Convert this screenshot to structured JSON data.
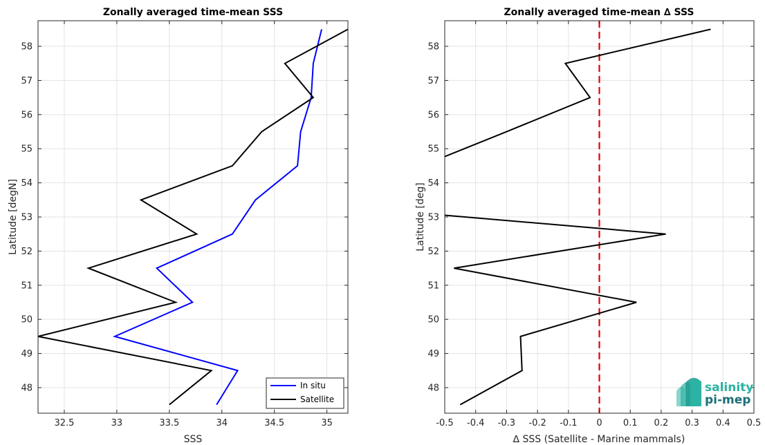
{
  "chart_data": [
    {
      "type": "line",
      "title": "Zonally averaged time-mean SSS",
      "xlabel": "SSS",
      "ylabel": "Latitude [degN]",
      "xlim": [
        32.25,
        35.2
      ],
      "ylim": [
        47.25,
        58.75
      ],
      "xticks": [
        "32.5",
        "33",
        "33.5",
        "34",
        "34.5",
        "35"
      ],
      "xtick_values": [
        32.5,
        33,
        33.5,
        34,
        34.5,
        35
      ],
      "yticks": [
        "48",
        "49",
        "50",
        "51",
        "52",
        "53",
        "54",
        "55",
        "56",
        "57",
        "58"
      ],
      "ytick_values": [
        48,
        49,
        50,
        51,
        52,
        53,
        54,
        55,
        56,
        57,
        58
      ],
      "grid": true,
      "legend_position": "bottom-right",
      "series": [
        {
          "name": "In situ",
          "color": "#0000ff",
          "x": [
            33.95,
            34.15,
            32.98,
            33.72,
            33.38,
            34.1,
            34.32,
            34.72,
            34.75,
            34.85,
            34.87,
            34.95
          ],
          "y": [
            47.5,
            48.5,
            49.5,
            50.5,
            51.5,
            52.5,
            53.5,
            54.5,
            55.5,
            56.5,
            57.5,
            58.5
          ]
        },
        {
          "name": "Satellite",
          "color": "#000000",
          "x": [
            33.5,
            33.9,
            32.25,
            33.56,
            32.73,
            33.76,
            33.23,
            34.1,
            34.38,
            34.87,
            34.6,
            35.2
          ],
          "y": [
            47.5,
            48.5,
            49.5,
            50.5,
            51.5,
            52.5,
            53.5,
            54.5,
            55.5,
            56.5,
            57.5,
            58.5
          ]
        }
      ]
    },
    {
      "type": "line",
      "title": "Zonally averaged time-mean ∆ SSS",
      "xlabel": "∆ SSS (Satellite - Marine mammals)",
      "ylabel": "Latitude [deg]",
      "xlim": [
        -0.5,
        0.5
      ],
      "ylim": [
        47.25,
        58.75
      ],
      "xticks": [
        "-0.5",
        "-0.4",
        "-0.3",
        "-0.2",
        "-0.1",
        "0",
        "0.1",
        "0.2",
        "0.3",
        "0.4",
        "0.5"
      ],
      "xtick_values": [
        -0.5,
        -0.4,
        -0.3,
        -0.2,
        -0.1,
        0,
        0.1,
        0.2,
        0.3,
        0.4,
        0.5
      ],
      "yticks": [
        "48",
        "49",
        "50",
        "51",
        "52",
        "53",
        "54",
        "55",
        "56",
        "57",
        "58"
      ],
      "ytick_values": [
        48,
        49,
        50,
        51,
        52,
        53,
        54,
        55,
        56,
        57,
        58
      ],
      "grid": true,
      "reference_line": {
        "x": 0,
        "color": "#e00000",
        "style": "dashed"
      },
      "series": [
        {
          "color": "#000000",
          "x": [
            -0.45,
            -0.25,
            -0.255,
            0.12,
            -0.47,
            0.215,
            -0.5,
            null,
            -0.5,
            -0.3,
            -0.03,
            -0.11,
            0.36
          ],
          "y": [
            47.5,
            48.5,
            49.5,
            50.5,
            51.5,
            52.5,
            53.05,
            null,
            54.77,
            55.5,
            56.5,
            57.5,
            58.5
          ]
        }
      ]
    }
  ],
  "logo": {
    "line1": "salinity",
    "line2": "pi-mep",
    "color1": "#2bb3a3",
    "color2": "#1d6f78"
  }
}
